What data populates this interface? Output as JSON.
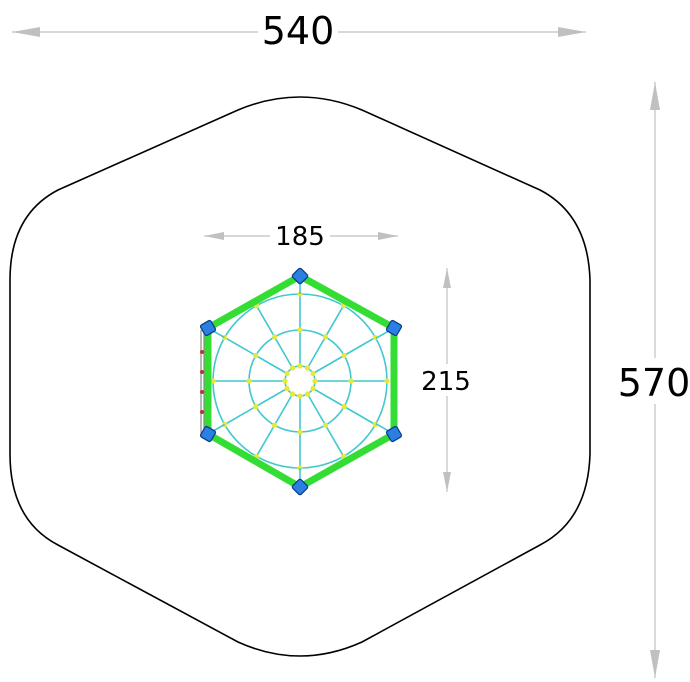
{
  "dimensions": {
    "overall_width": "540",
    "overall_depth": "570",
    "equipment_width": "185",
    "equipment_depth": "215"
  },
  "colors": {
    "frame": "#33dd33",
    "net": "#40c8d0",
    "knots": "#e8e83a",
    "posts": "#2a7fe0",
    "safety_zone": "#000000",
    "dimension_lines": "#c0c0c0"
  },
  "net": {
    "radial_ropes": 12,
    "rings": 3
  }
}
